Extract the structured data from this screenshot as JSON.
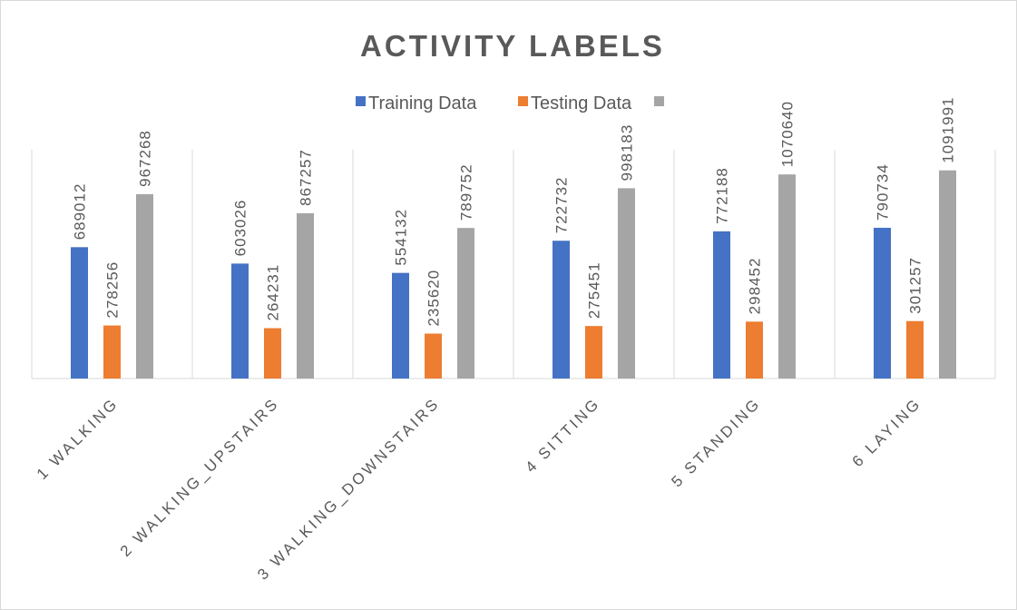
{
  "chart_data": {
    "type": "bar",
    "title": "ACTIVITY LABELS",
    "categories": [
      "1 WALKING",
      "2 WALKING_UPSTAIRS",
      "3 WALKING_DOWNSTAIRS",
      "4 SITTING",
      "5 STANDING",
      "6 LAYING"
    ],
    "series": [
      {
        "name": "Training Data",
        "color": "#4472c4",
        "values": [
          689012,
          603026,
          554132,
          722732,
          772188,
          790734
        ]
      },
      {
        "name": "Testing Data",
        "color": "#ed7d31",
        "values": [
          278256,
          264231,
          235620,
          275451,
          298452,
          301257
        ]
      },
      {
        "color": "#a5a5a5",
        "values": [
          967268,
          867257,
          789752,
          998183,
          1070640,
          1091991
        ]
      }
    ],
    "ylim": [
      0,
      1200000
    ],
    "grid": false,
    "legend": "top"
  }
}
